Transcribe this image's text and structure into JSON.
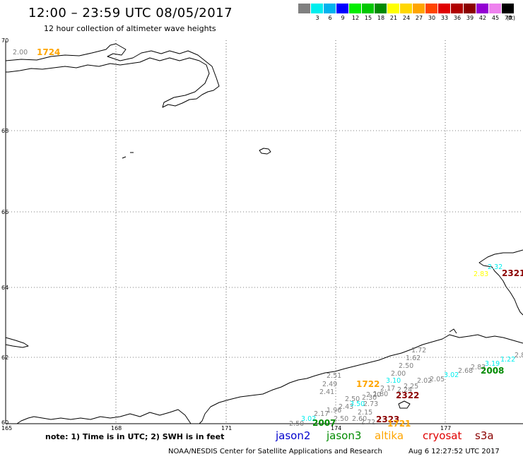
{
  "header": {
    "title": "12:00 – 23:59 UTC 08/05/2017",
    "subtitle": "12 hour collection of altimeter wave heights"
  },
  "scale": {
    "labels": [
      "3",
      "6",
      "9",
      "12",
      "15",
      "18",
      "21",
      "24",
      "27",
      "30",
      "33",
      "36",
      "39",
      "42",
      "45",
      "70"
    ],
    "unit": "(ft)",
    "colors": [
      "#808080",
      "#00eeee",
      "#00b2ee",
      "#0000ff",
      "#00ee00",
      "#00c800",
      "#008b00",
      "#ffff00",
      "#ffd700",
      "#ffa500",
      "#ff4500",
      "#e00000",
      "#b00000",
      "#8b0000",
      "#9400d3",
      "#ee82ee",
      "#000000"
    ]
  },
  "map": {
    "lat_labels": [
      "70",
      "68",
      "66",
      "64",
      "62",
      "60"
    ],
    "lon_labels": [
      "165",
      "168",
      "171",
      "174",
      "177"
    ],
    "observations": [
      {
        "text": "2.00",
        "color": "#808080"
      },
      {
        "text": "1724",
        "color": "#ffa500",
        "pass": true
      },
      {
        "text": "2.83",
        "color": "#ffff00"
      },
      {
        "text": "2.32",
        "color": "#00eeee"
      },
      {
        "text": "2321",
        "color": "#8b0000",
        "pass": true
      },
      {
        "text": "1.72",
        "color": "#808080"
      },
      {
        "text": "1.62",
        "color": "#808080"
      },
      {
        "text": "2.50",
        "color": "#808080"
      },
      {
        "text": "2.00",
        "color": "#808080"
      },
      {
        "text": "2.25",
        "color": "#808080"
      },
      {
        "text": "2.02",
        "color": "#808080"
      },
      {
        "text": "2.05",
        "color": "#808080"
      },
      {
        "text": "3.02",
        "color": "#00eeee"
      },
      {
        "text": "2.68",
        "color": "#808080"
      },
      {
        "text": "2.83",
        "color": "#808080"
      },
      {
        "text": "3.19",
        "color": "#00eeee"
      },
      {
        "text": "1.22",
        "color": "#00eeee"
      },
      {
        "text": "2.8",
        "color": "#808080"
      },
      {
        "text": "2008",
        "color": "#008b00",
        "pass": true
      },
      {
        "text": "2.51",
        "color": "#808080"
      },
      {
        "text": "2.49",
        "color": "#808080"
      },
      {
        "text": "2.41",
        "color": "#808080"
      },
      {
        "text": "1722",
        "color": "#ffa500",
        "pass": true
      },
      {
        "text": "3.10",
        "color": "#00eeee"
      },
      {
        "text": "2.17",
        "color": "#808080"
      },
      {
        "text": "2.24",
        "color": "#808080"
      },
      {
        "text": "1.80",
        "color": "#808080"
      },
      {
        "text": "2.20",
        "color": "#808080"
      },
      {
        "text": "2.30",
        "color": "#808080"
      },
      {
        "text": "2322",
        "color": "#8b0000",
        "pass": true
      },
      {
        "text": "2.50",
        "color": "#808080"
      },
      {
        "text": "2.43",
        "color": "#808080"
      },
      {
        "text": "3.50",
        "color": "#00eeee"
      },
      {
        "text": "2.73",
        "color": "#808080"
      },
      {
        "text": "1.96",
        "color": "#808080"
      },
      {
        "text": "2.17",
        "color": "#808080"
      },
      {
        "text": "2.15",
        "color": "#808080"
      },
      {
        "text": "2.60",
        "color": "#808080"
      },
      {
        "text": "2.50",
        "color": "#808080"
      },
      {
        "text": "2.72",
        "color": "#808080"
      },
      {
        "text": "3.02",
        "color": "#00eeee"
      },
      {
        "text": "2.50",
        "color": "#808080"
      },
      {
        "text": "2007",
        "color": "#008b00",
        "pass": true
      },
      {
        "text": "2323",
        "color": "#8b0000",
        "pass": true
      },
      {
        "text": "1721",
        "color": "#ffa500",
        "pass": true
      }
    ]
  },
  "footer": {
    "note": "note: 1) Time is in UTC; 2) SWH is in feet",
    "satellites": [
      {
        "name": "jason2",
        "color": "#0000cd"
      },
      {
        "name": "jason3",
        "color": "#008b00"
      },
      {
        "name": "altika",
        "color": "#ffa500"
      },
      {
        "name": "cryosat",
        "color": "#e00000"
      },
      {
        "name": "s3a",
        "color": "#8b0000"
      }
    ],
    "credit": "NOAA/NESDIS Center for Satellite Applications and Research",
    "timestamp": "Aug  6 12:27:52 UTC 2017"
  }
}
